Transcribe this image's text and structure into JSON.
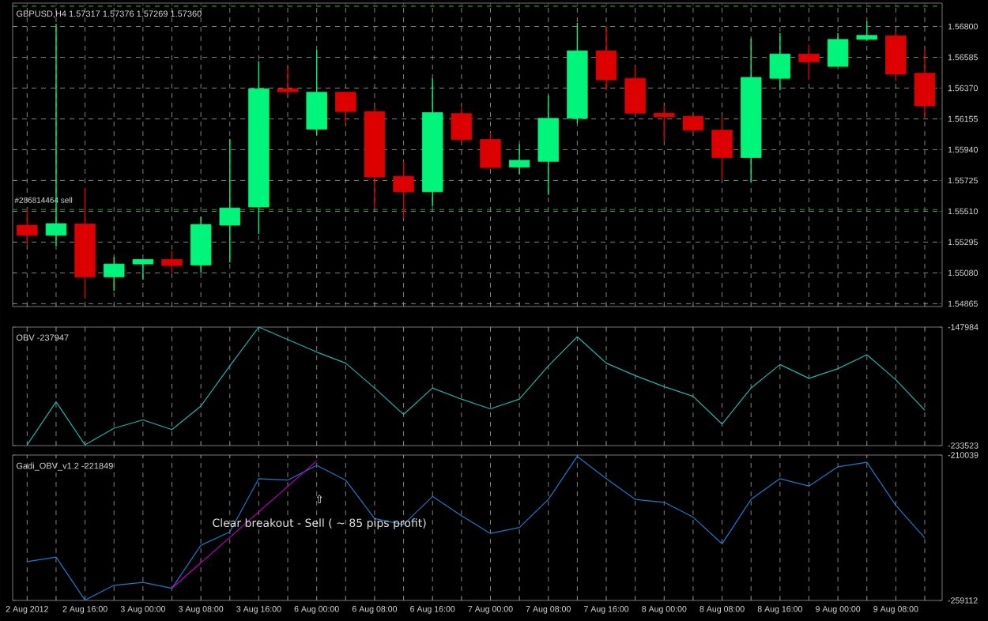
{
  "chart_data": [
    {
      "type": "candlestick",
      "title": "GBPUSD,H4  1.57317 1.57376 1.57269 1.57360",
      "categories": [
        null,
        null,
        null,
        null,
        null,
        null,
        null,
        null,
        null,
        null,
        null,
        null,
        null,
        null,
        null,
        null,
        null,
        null,
        null,
        null,
        null,
        null,
        null,
        null,
        null,
        null,
        null,
        null,
        null,
        null,
        null,
        null
      ],
      "ohlc": [
        [
          1.55413,
          1.55529,
          1.55269,
          1.55342
        ],
        [
          1.55342,
          1.56818,
          1.55269,
          1.55424
        ],
        [
          1.55421,
          1.55671,
          1.549,
          1.55052
        ],
        [
          1.55052,
          1.5519,
          1.54954,
          1.55142
        ],
        [
          1.55142,
          1.55174,
          1.55033,
          1.55174
        ],
        [
          1.55174,
          1.55233,
          1.55081,
          1.55131
        ],
        [
          1.55135,
          1.55472,
          1.55081,
          1.55418
        ],
        [
          1.55413,
          1.56015,
          1.55153,
          1.55533
        ],
        [
          1.5554,
          1.56558,
          1.55352,
          1.56366
        ],
        [
          1.56366,
          1.56521,
          1.56311,
          1.56344
        ],
        [
          1.56083,
          1.56637,
          1.5604,
          1.56341
        ],
        [
          1.56341,
          1.56341,
          1.56123,
          1.56206
        ],
        [
          1.56206,
          1.56239,
          1.5554,
          1.5575
        ],
        [
          1.55754,
          1.55858,
          1.55461,
          1.55646
        ],
        [
          1.55646,
          1.56438,
          1.55544,
          1.56199
        ],
        [
          1.56192,
          1.56231,
          1.55986,
          1.56011
        ],
        [
          1.56011,
          1.56058,
          1.55815,
          1.55815
        ],
        [
          1.55819,
          1.55978,
          1.55768,
          1.55866
        ],
        [
          1.55858,
          1.56319,
          1.55624,
          1.56159
        ],
        [
          1.56159,
          1.56825,
          1.56123,
          1.5663
        ],
        [
          1.5663,
          1.568,
          1.56355,
          1.56428
        ],
        [
          1.56438,
          1.56521,
          1.56195,
          1.56195
        ],
        [
          1.56195,
          1.56246,
          1.56004,
          1.5617
        ],
        [
          1.56173,
          1.56184,
          1.56058,
          1.56076
        ],
        [
          1.56076,
          1.56173,
          1.55732,
          1.55885
        ],
        [
          1.55885,
          1.56716,
          1.55714,
          1.56445
        ],
        [
          1.56438,
          1.56753,
          1.56355,
          1.56608
        ],
        [
          1.56608,
          1.56673,
          1.56428,
          1.56553
        ],
        [
          1.56521,
          1.56753,
          1.56521,
          1.5671
        ],
        [
          1.5671,
          1.56836,
          1.56702,
          1.56738
        ],
        [
          1.56735,
          1.56764,
          1.5642,
          1.56467
        ],
        [
          1.56474,
          1.56637,
          1.56159,
          1.56246
        ]
      ],
      "colors": [
        "#dd0000",
        "#00f57a",
        "#dd0000",
        "#00f57a",
        "#00f57a",
        "#dd0000",
        "#00f57a",
        "#00f57a",
        "#00f57a",
        "#dd0000",
        "#00f57a",
        "#dd0000",
        "#dd0000",
        "#dd0000",
        "#00f57a",
        "#dd0000",
        "#dd0000",
        "#00f57a",
        "#00f57a",
        "#00f57a",
        "#dd0000",
        "#dd0000",
        "#dd0000",
        "#dd0000",
        "#dd0000",
        "#00f57a",
        "#00f57a",
        "#dd0000",
        "#00f57a",
        "#00f57a",
        "#dd0000",
        "#dd0000"
      ],
      "ylim": [
        1.54845,
        1.56963
      ],
      "yticks": [
        {
          "value": 1.54865,
          "label": "1.54865"
        },
        {
          "value": 1.5508,
          "label": "1.55080"
        },
        {
          "value": 1.55295,
          "label": "1.55295"
        },
        {
          "value": 1.5551,
          "label": "1.55510"
        },
        {
          "value": 1.55725,
          "label": "1.55725"
        },
        {
          "value": 1.5594,
          "label": "1.55940"
        },
        {
          "value": 1.56155,
          "label": "1.56155"
        },
        {
          "value": 1.5637,
          "label": "1.56370"
        },
        {
          "value": 1.56585,
          "label": "1.56585"
        },
        {
          "value": 1.568,
          "label": "1.56800"
        }
      ],
      "ref_lines": [
        {
          "axis": "y",
          "value": 1.55522,
          "label": "#286814464 sell",
          "color": "#22a022",
          "line_style": "dashed"
        },
        {
          "axis": "y",
          "value": 1.56941,
          "label": null,
          "color": "#22a022",
          "line_style": "dashed"
        }
      ],
      "grid": true,
      "tick_labels": "y"
    },
    {
      "type": "line",
      "title": "OBV -237947",
      "categories": [
        null,
        null,
        null,
        null,
        null,
        null,
        null,
        null,
        null,
        null,
        null,
        null,
        null,
        null,
        null,
        null,
        null,
        null,
        null,
        null,
        null,
        null,
        null,
        null,
        null,
        null,
        null,
        null,
        null,
        null,
        null,
        null
      ],
      "series": [
        {
          "color": "#20b2aa",
          "values": [
            -233000,
            -202000,
            -233000,
            -221000,
            -215000,
            -222000,
            -205000,
            -176000,
            -148000,
            -157000,
            -166000,
            -174000,
            -192000,
            -211000,
            -192000,
            -200000,
            -207000,
            -200000,
            -176000,
            -155000,
            -174000,
            -183000,
            -191000,
            -198000,
            -218000,
            -192000,
            -175000,
            -185000,
            -178000,
            -168000,
            -186000,
            -208000
          ]
        }
      ],
      "ylim": [
        -233523,
        -147984
      ],
      "yticks": [
        -233523,
        -147984
      ],
      "grid": "x",
      "tick_labels": "y"
    },
    {
      "type": "line",
      "title": "Gadi_OBV_v1.2 -221849",
      "categories": [
        "2 Aug 2012",
        null,
        "2 Aug 16:00",
        null,
        "3 Aug 00:00",
        null,
        "3 Aug 08:00",
        null,
        "3 Aug 16:00",
        null,
        "6 Aug 00:00",
        null,
        "6 Aug 08:00",
        null,
        "6 Aug 16:00",
        null,
        "7 Aug 00:00",
        null,
        "7 Aug 08:00",
        null,
        "7 Aug 16:00",
        null,
        "8 Aug 00:00",
        null,
        "8 Aug 08:00",
        null,
        "8 Aug 16:00",
        null,
        "9 Aug 00:00",
        null,
        "9 Aug 08:00",
        null
      ],
      "series": [
        {
          "color": "#1f78c8",
          "values": [
            -246000,
            -244500,
            -259000,
            -254000,
            -253000,
            -255000,
            -240500,
            -236000,
            -218000,
            -218500,
            -213500,
            -218500,
            -231500,
            -233500,
            -224000,
            -230500,
            -236500,
            -234500,
            -225000,
            -210500,
            -218000,
            -225000,
            -226000,
            -231000,
            -240000,
            -225000,
            -218000,
            -220500,
            -214000,
            -212500,
            -227000,
            -238000
          ]
        },
        {
          "color": "#c000c0",
          "values": [
            null,
            null,
            null,
            null,
            null,
            -255000,
            null,
            null,
            null,
            null,
            -212000,
            null,
            null,
            null,
            null,
            null,
            null,
            null,
            null,
            null,
            null,
            null,
            null,
            null,
            null,
            null,
            null,
            null,
            null,
            null,
            null,
            null
          ]
        }
      ],
      "annotations": [
        "⇧",
        "Clear breakout - Sell ( ~ 85 pips profit)"
      ],
      "ylim": [
        -259112,
        -210039
      ],
      "yticks": [
        -259112,
        -210039
      ],
      "grid": "x"
    }
  ]
}
